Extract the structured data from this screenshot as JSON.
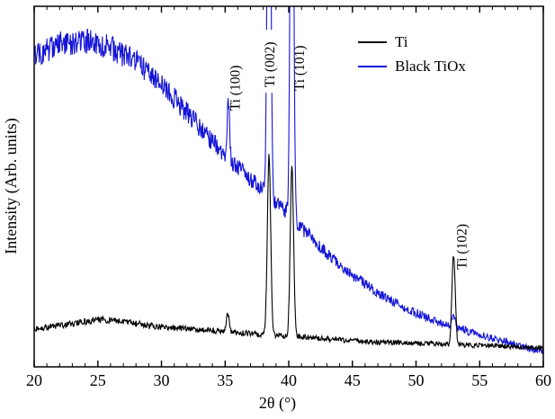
{
  "chart_data": {
    "type": "line",
    "title": "",
    "xlabel": "2θ (°)",
    "ylabel": "Intensity (Arb. units)",
    "xlim": [
      20,
      60
    ],
    "xticks": [
      20,
      25,
      30,
      35,
      40,
      45,
      50,
      55,
      60
    ],
    "minor_tick_step": 1,
    "grid": false,
    "legend_position": "upper-right",
    "ylim_normalized": [
      0,
      1
    ],
    "series": [
      {
        "name": "Ti",
        "color": "#000000",
        "seed": 3,
        "noise_base": 0.005,
        "noise_scale": 0.03,
        "background": [
          [
            20,
            0.105
          ],
          [
            22,
            0.115
          ],
          [
            24,
            0.125
          ],
          [
            25,
            0.13
          ],
          [
            26,
            0.13
          ],
          [
            27,
            0.125
          ],
          [
            28,
            0.12
          ],
          [
            30,
            0.11
          ],
          [
            32,
            0.105
          ],
          [
            34,
            0.1
          ],
          [
            36,
            0.095
          ],
          [
            38,
            0.09
          ],
          [
            40,
            0.085
          ],
          [
            42,
            0.08
          ],
          [
            44,
            0.075
          ],
          [
            46,
            0.07
          ],
          [
            48,
            0.068
          ],
          [
            50,
            0.065
          ],
          [
            52,
            0.063
          ],
          [
            54,
            0.06
          ],
          [
            56,
            0.058
          ],
          [
            58,
            0.055
          ],
          [
            60,
            0.052
          ]
        ],
        "peaks": [
          {
            "center": 35.2,
            "height": 0.055,
            "sigma": 0.1
          },
          {
            "center": 38.45,
            "height": 0.5,
            "sigma": 0.13
          },
          {
            "center": 40.25,
            "height": 0.47,
            "sigma": 0.13
          },
          {
            "center": 52.95,
            "height": 0.25,
            "sigma": 0.13
          }
        ]
      },
      {
        "name": "Black TiOx",
        "color": "#1414d8",
        "seed": 7,
        "noise_base": 0.008,
        "noise_scale": 0.03,
        "background": [
          [
            20,
            0.865
          ],
          [
            21,
            0.88
          ],
          [
            22,
            0.895
          ],
          [
            23,
            0.9
          ],
          [
            24,
            0.905
          ],
          [
            25,
            0.895
          ],
          [
            26,
            0.885
          ],
          [
            27,
            0.865
          ],
          [
            28,
            0.845
          ],
          [
            29,
            0.815
          ],
          [
            30,
            0.78
          ],
          [
            31,
            0.745
          ],
          [
            32,
            0.705
          ],
          [
            33,
            0.665
          ],
          [
            34,
            0.625
          ],
          [
            35,
            0.59
          ],
          [
            36,
            0.555
          ],
          [
            37,
            0.52
          ],
          [
            38,
            0.49
          ],
          [
            39,
            0.455
          ],
          [
            40,
            0.425
          ],
          [
            41,
            0.385
          ],
          [
            42,
            0.35
          ],
          [
            43,
            0.315
          ],
          [
            44,
            0.285
          ],
          [
            45,
            0.255
          ],
          [
            46,
            0.23
          ],
          [
            47,
            0.205
          ],
          [
            48,
            0.185
          ],
          [
            49,
            0.165
          ],
          [
            50,
            0.15
          ],
          [
            51,
            0.135
          ],
          [
            52,
            0.12
          ],
          [
            53,
            0.11
          ],
          [
            54,
            0.1
          ],
          [
            55,
            0.09
          ],
          [
            56,
            0.08
          ],
          [
            57,
            0.07
          ],
          [
            58,
            0.06
          ],
          [
            59,
            0.05
          ],
          [
            60,
            0.04
          ]
        ],
        "peaks": [
          {
            "center": 35.25,
            "height": 0.17,
            "sigma": 0.09
          },
          {
            "center": 38.45,
            "height": 1.6,
            "sigma": 0.12
          },
          {
            "center": 40.25,
            "height": 1.6,
            "sigma": 0.12
          },
          {
            "center": 52.95,
            "height": 0.035,
            "sigma": 0.12
          }
        ]
      }
    ],
    "annotations": [
      {
        "text": "Ti (100)",
        "x": 35.8,
        "v": 0.71,
        "bg": false
      },
      {
        "text": "Ti (002)",
        "x": 38.5,
        "v": 0.775,
        "bg": true
      },
      {
        "text": "Ti (101)",
        "x": 40.85,
        "v": 0.765,
        "bg": false
      },
      {
        "text": "Ti (102)",
        "x": 53.6,
        "v": 0.27,
        "bg": false
      }
    ]
  }
}
